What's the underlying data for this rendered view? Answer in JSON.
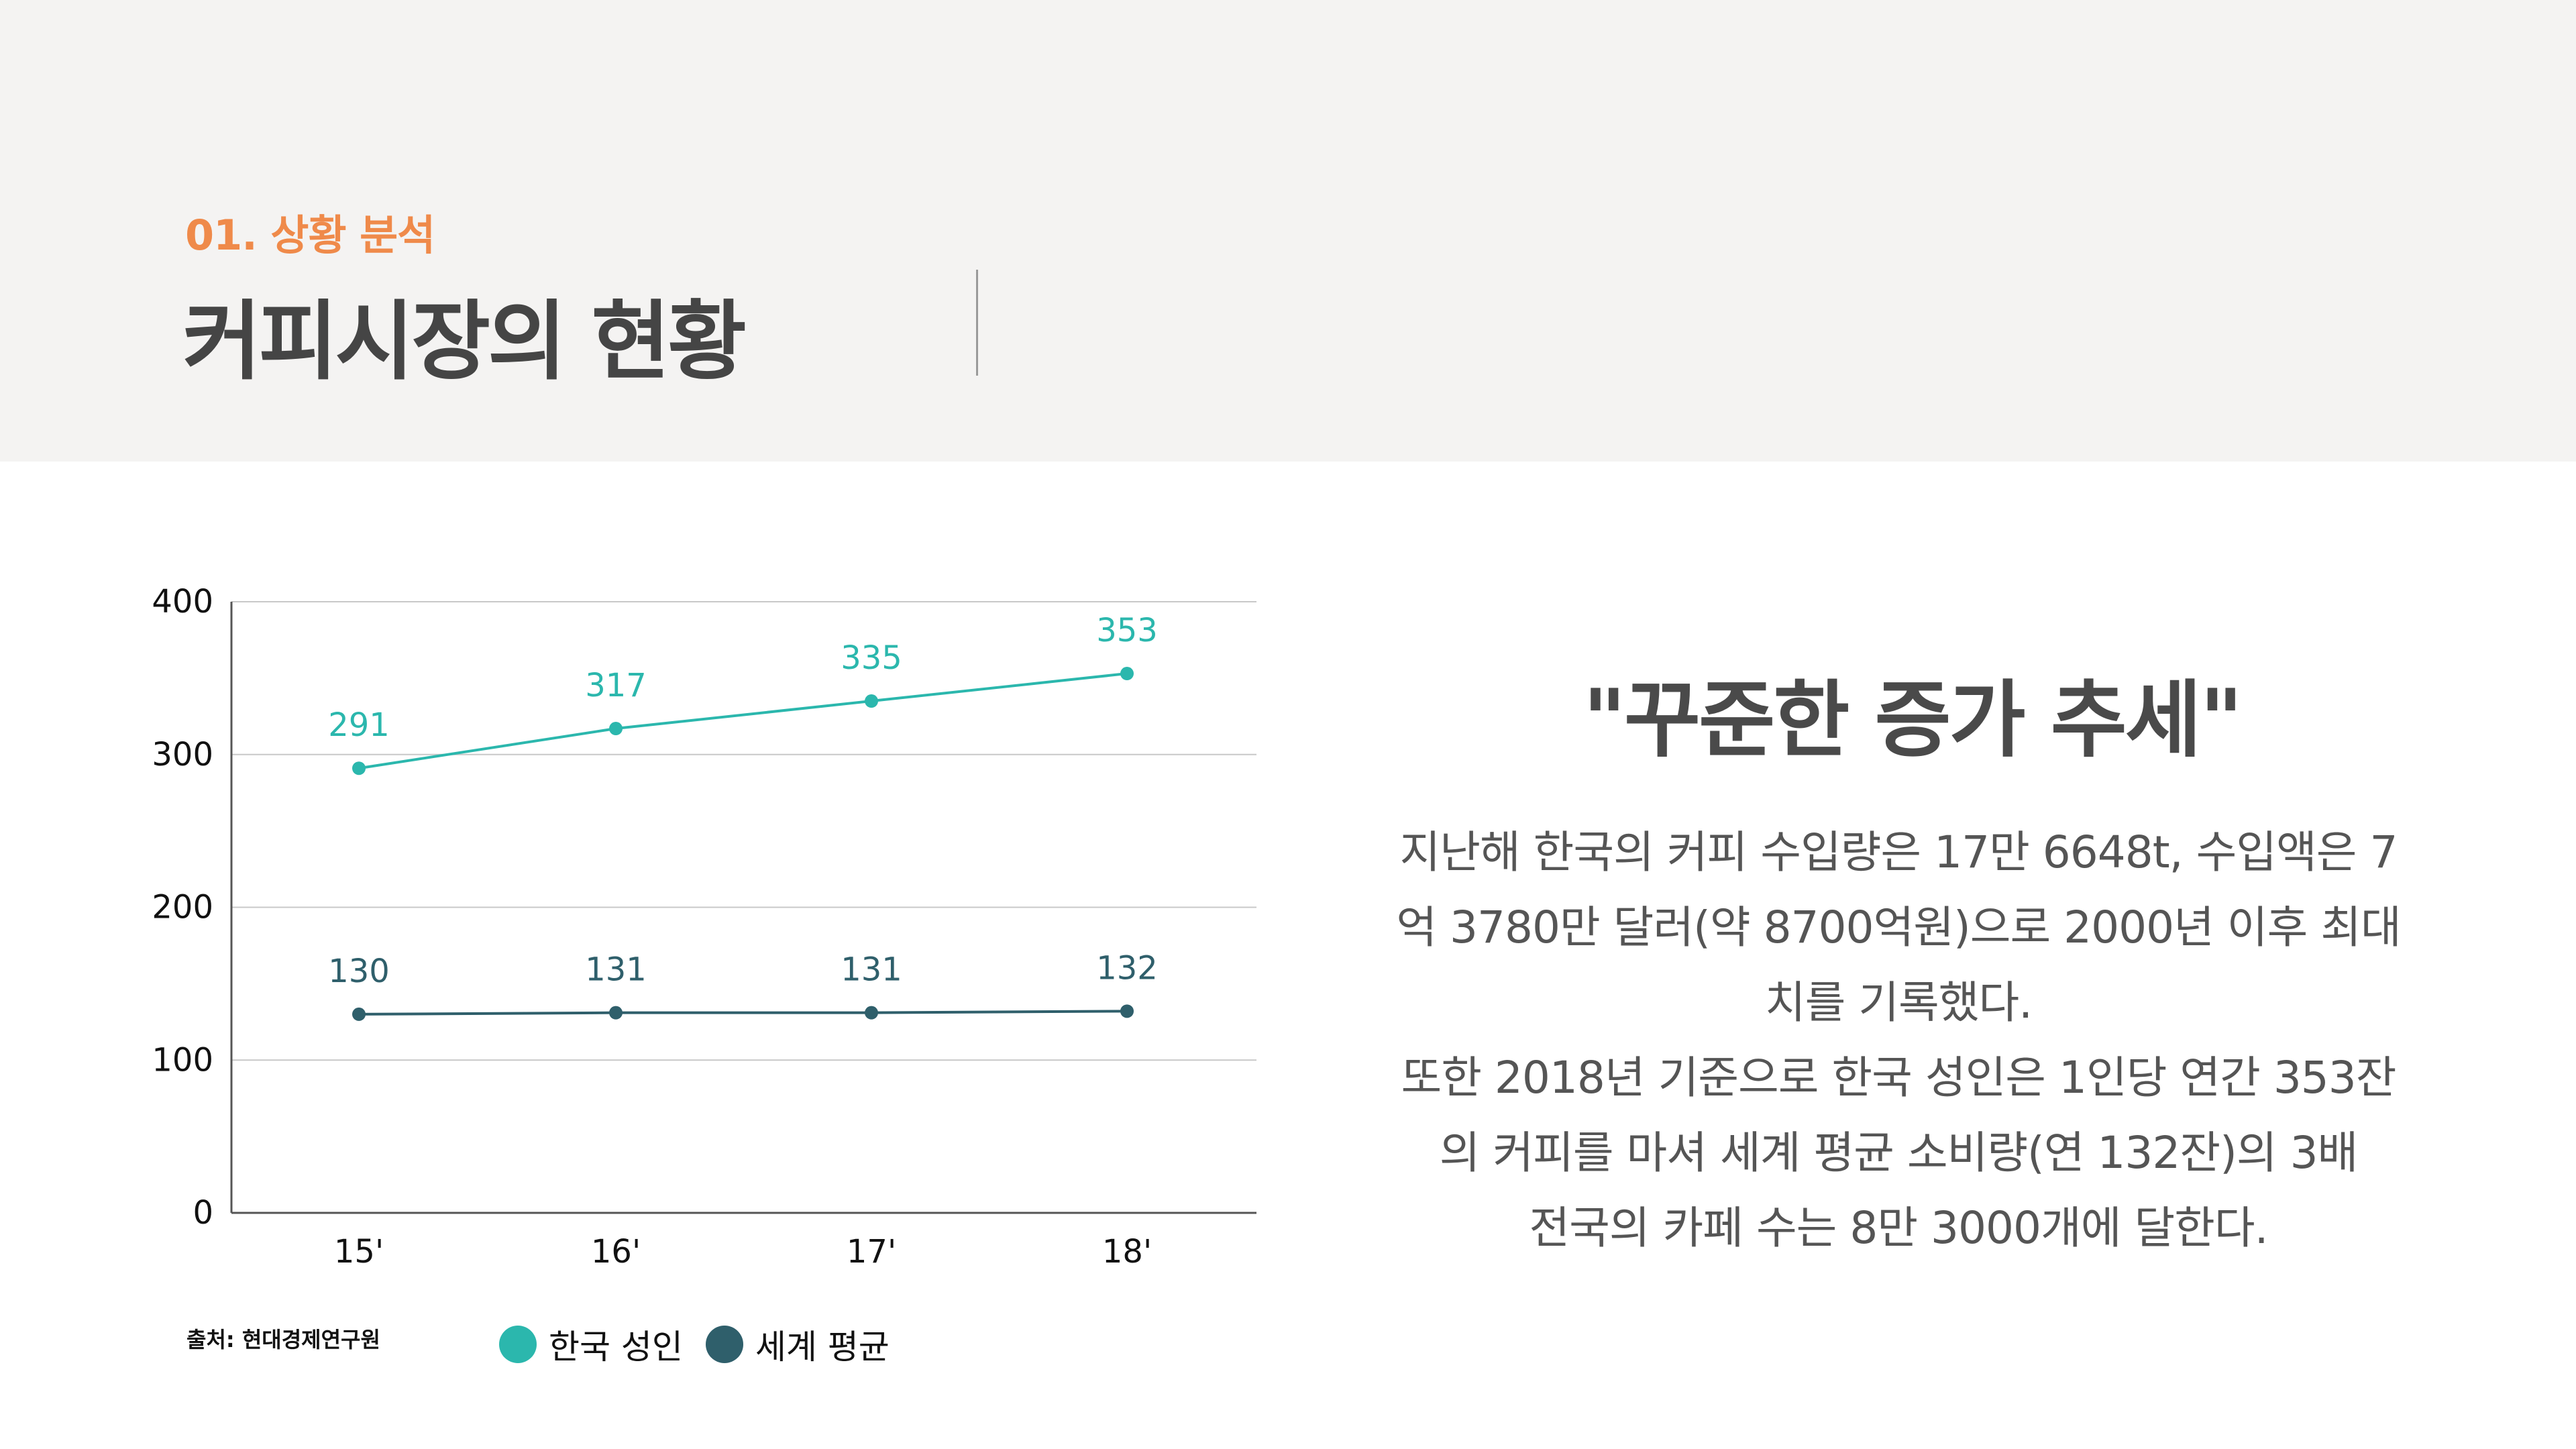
{
  "header": {
    "section_label": "01. 상황 분석",
    "title": "커피시장의 현황"
  },
  "colors": {
    "header_bg": "#f4f3f2",
    "accent_orange": "#ef8a4a",
    "series_korea": "#2bb7ad",
    "series_world": "#2f5f6b",
    "grid": "#c8c8c8"
  },
  "chart_data": {
    "type": "line",
    "categories": [
      "15'",
      "16'",
      "17'",
      "18'"
    ],
    "series": [
      {
        "name": "한국 성인",
        "values": [
          291,
          317,
          335,
          353
        ],
        "color": "#2bb7ad"
      },
      {
        "name": "세계 평균",
        "values": [
          130,
          131,
          131,
          132
        ],
        "color": "#2f5f6b"
      }
    ],
    "y_ticks": [
      0,
      100,
      200,
      300,
      400
    ],
    "ylim": [
      0,
      400
    ],
    "grid": true,
    "legend_position": "bottom-left",
    "data_labels": true
  },
  "source": "출처: 현대경제연구원",
  "quote": "\"꾸준한 증가 추세\"",
  "body": {
    "lines": [
      "지난해 한국의 커피 수입량은 17만 6648t, 수입액은 7",
      "억 3780만 달러(약 8700억원)으로 2000년 이후 최대",
      "치를 기록했다.",
      "또한 2018년 기준으로 한국 성인은 1인당 연간 353잔",
      "의 커피를 마셔 세계 평균 소비량(연 132잔)의 3배",
      "전국의 카페 수는 8만 3000개에 달한다."
    ]
  }
}
